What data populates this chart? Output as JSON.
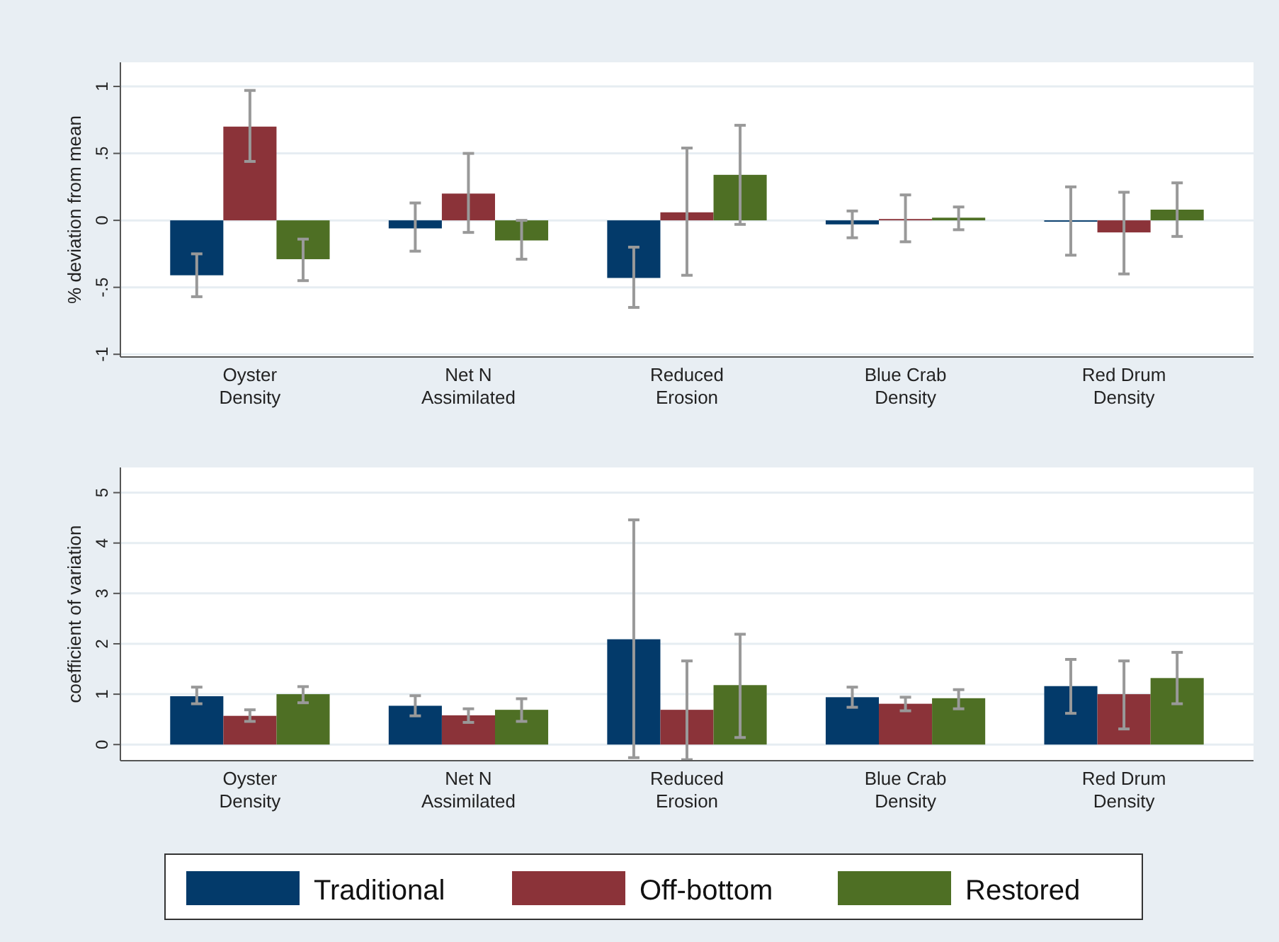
{
  "chart_data": [
    {
      "type": "bar",
      "ylabel": "% deviation from mean",
      "categories": [
        "Oyster\nDensity",
        "Net N\nAssimilated",
        "Reduced\nErosion",
        "Blue Crab\nDensity",
        "Red Drum\nDensity"
      ],
      "ylim": [
        -1.02,
        1.18
      ],
      "yticks": [
        {
          "value": -1,
          "label": "-1"
        },
        {
          "value": -0.5,
          "label": "-.5"
        },
        {
          "value": 0,
          "label": "0"
        },
        {
          "value": 0.5,
          "label": ".5"
        },
        {
          "value": 1,
          "label": "1"
        }
      ],
      "grid": "y",
      "legend": false,
      "series": [
        {
          "color": "#033a6a",
          "values": [
            -0.41,
            -0.06,
            -0.43,
            -0.03,
            -0.01
          ],
          "errors": [
            [
              -0.57,
              -0.25
            ],
            [
              -0.23,
              0.13
            ],
            [
              -0.65,
              -0.2
            ],
            [
              -0.13,
              0.07
            ],
            [
              -0.26,
              0.25
            ]
          ]
        },
        {
          "color": "#8b3339",
          "values": [
            0.7,
            0.2,
            0.06,
            0.01,
            -0.09
          ],
          "errors": [
            [
              0.44,
              0.97
            ],
            [
              -0.09,
              0.5
            ],
            [
              -0.41,
              0.54
            ],
            [
              -0.16,
              0.19
            ],
            [
              -0.4,
              0.21
            ]
          ]
        },
        {
          "color": "#4e6f24",
          "values": [
            -0.29,
            -0.15,
            0.34,
            0.02,
            0.08
          ],
          "errors": [
            [
              -0.45,
              -0.14
            ],
            [
              -0.29,
              0
            ],
            [
              -0.03,
              0.71
            ],
            [
              -0.07,
              0.1
            ],
            [
              -0.12,
              0.28
            ]
          ]
        }
      ]
    },
    {
      "type": "bar",
      "ylabel": "coefficient of variation",
      "categories": [
        "Oyster\nDensity",
        "Net N\nAssimilated",
        "Reduced\nErosion",
        "Blue Crab\nDensity",
        "Red Drum\nDensity"
      ],
      "ylim": [
        -0.32,
        5.5
      ],
      "yticks": [
        0,
        1,
        2,
        3,
        4,
        5
      ],
      "grid": "y",
      "legend": "bottom",
      "series": [
        {
          "name": "Traditional",
          "color": "#033a6a",
          "values": [
            0.96,
            0.77,
            2.09,
            0.94,
            1.16
          ],
          "errors": [
            [
              0.81,
              1.14
            ],
            [
              0.57,
              0.97
            ],
            [
              -0.26,
              4.46
            ],
            [
              0.74,
              1.14
            ],
            [
              0.62,
              1.69
            ]
          ]
        },
        {
          "name": "Off-bottom",
          "color": "#8b3339",
          "values": [
            0.57,
            0.58,
            0.69,
            0.81,
            1.0
          ],
          "errors": [
            [
              0.46,
              0.69
            ],
            [
              0.44,
              0.71
            ],
            [
              -0.3,
              1.66
            ],
            [
              0.67,
              0.94
            ],
            [
              0.31,
              1.66
            ]
          ]
        },
        {
          "name": "Restored",
          "color": "#4e6f24",
          "values": [
            1.0,
            0.69,
            1.18,
            0.92,
            1.32
          ],
          "errors": [
            [
              0.83,
              1.15
            ],
            [
              0.46,
              0.91
            ],
            [
              0.14,
              2.19
            ],
            [
              0.71,
              1.09
            ],
            [
              0.81,
              1.83
            ]
          ]
        }
      ]
    }
  ]
}
